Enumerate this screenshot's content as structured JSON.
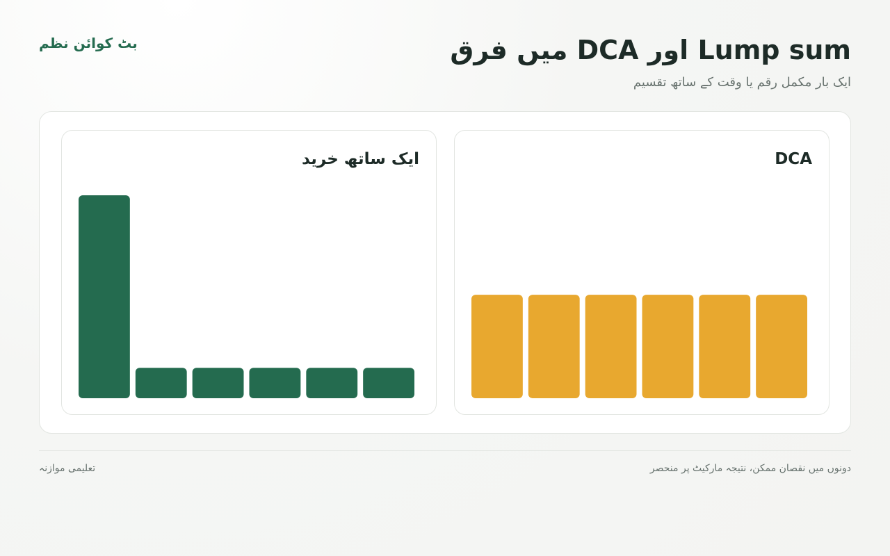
{
  "header": {
    "brand": "بٹ کوائن نظم",
    "title": "Lump sum اور DCA میں فرق",
    "subtitle": "ایک بار مکمل رقم یا وقت کے ساتھ تقسیم"
  },
  "chart_data": [
    {
      "type": "bar",
      "title": "DCA",
      "values": [
        51,
        51,
        51,
        51,
        51,
        51
      ],
      "color": "#e8a82f",
      "ylim": [
        0,
        100
      ]
    },
    {
      "type": "bar",
      "title": "ایک ساتھ خرید",
      "values": [
        100,
        15,
        15,
        15,
        15,
        15
      ],
      "color": "#246b4f",
      "ylim": [
        0,
        100
      ]
    }
  ],
  "footer": {
    "note": "دونوں میں نقصان ممکن، نتیجہ مارکیٹ پر منحصر",
    "tag": "تعلیمی موازنہ"
  }
}
